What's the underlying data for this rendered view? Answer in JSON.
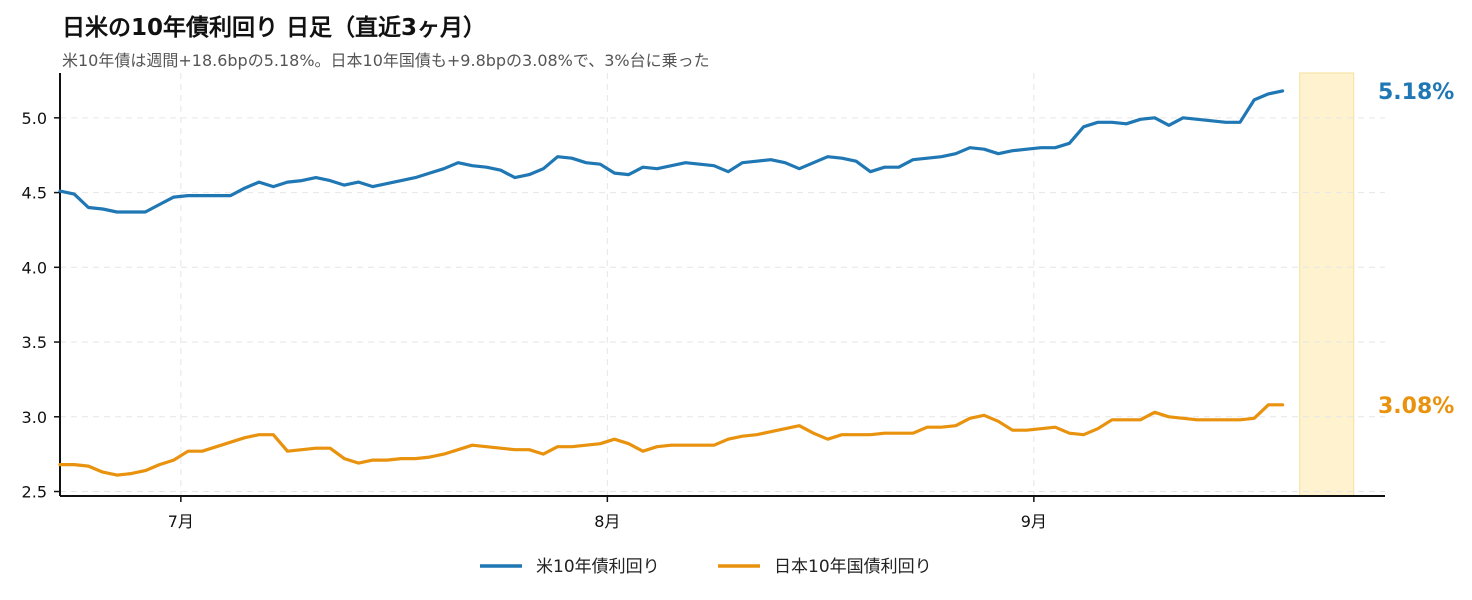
{
  "chart_data": {
    "type": "line",
    "title": "日米の10年債利回り 日足（直近3ヶ月）",
    "subtitle": "米10年債は週間+18.6bpの5.18%。日本10年国債も+9.8bpの3.08%で、3%台に乗った",
    "ylim": [
      2.47,
      5.3
    ],
    "yticks": [
      "2.5",
      "3.0",
      "3.5",
      "4.0",
      "4.5",
      "5.0"
    ],
    "xlim": [
      0,
      93.2
    ],
    "xticks": [
      {
        "x": 8.5,
        "label": "7月"
      },
      {
        "x": 38.5,
        "label": "8月"
      },
      {
        "x": 68.5,
        "label": "9月"
      }
    ],
    "highlight": [
      87.2,
      91
    ],
    "grid": true,
    "legend": "bottom-center",
    "series": [
      {
        "name": "米10年債利回り",
        "color": "#1f77b4",
        "end_label": "5.18%",
        "points": [
          [
            0,
            4.51
          ],
          [
            1,
            4.49
          ],
          [
            2,
            4.4
          ],
          [
            3,
            4.39
          ],
          [
            4,
            4.37
          ],
          [
            5,
            4.37
          ],
          [
            6,
            4.37
          ],
          [
            7,
            4.42
          ],
          [
            8,
            4.47
          ],
          [
            9,
            4.48
          ],
          [
            10,
            4.48
          ],
          [
            11,
            4.48
          ],
          [
            12,
            4.48
          ],
          [
            13,
            4.53
          ],
          [
            14,
            4.57
          ],
          [
            15,
            4.54
          ],
          [
            16,
            4.57
          ],
          [
            17,
            4.58
          ],
          [
            18,
            4.6
          ],
          [
            19,
            4.58
          ],
          [
            20,
            4.55
          ],
          [
            21,
            4.57
          ],
          [
            22,
            4.54
          ],
          [
            23,
            4.56
          ],
          [
            24,
            4.58
          ],
          [
            25,
            4.6
          ],
          [
            26,
            4.63
          ],
          [
            27,
            4.66
          ],
          [
            28,
            4.7
          ],
          [
            29,
            4.68
          ],
          [
            30,
            4.67
          ],
          [
            31,
            4.65
          ],
          [
            32,
            4.6
          ],
          [
            33,
            4.62
          ],
          [
            34,
            4.66
          ],
          [
            35,
            4.74
          ],
          [
            36,
            4.73
          ],
          [
            37,
            4.7
          ],
          [
            38,
            4.69
          ],
          [
            39,
            4.63
          ],
          [
            40,
            4.62
          ],
          [
            41,
            4.67
          ],
          [
            42,
            4.66
          ],
          [
            43,
            4.68
          ],
          [
            44,
            4.7
          ],
          [
            45,
            4.69
          ],
          [
            46,
            4.68
          ],
          [
            47,
            4.64
          ],
          [
            48,
            4.7
          ],
          [
            49,
            4.71
          ],
          [
            50,
            4.72
          ],
          [
            51,
            4.7
          ],
          [
            52,
            4.66
          ],
          [
            53,
            4.7
          ],
          [
            54,
            4.74
          ],
          [
            55,
            4.73
          ],
          [
            56,
            4.71
          ],
          [
            57,
            4.64
          ],
          [
            58,
            4.67
          ],
          [
            59,
            4.67
          ],
          [
            60,
            4.72
          ],
          [
            61,
            4.73
          ],
          [
            62,
            4.74
          ],
          [
            63,
            4.76
          ],
          [
            64,
            4.8
          ],
          [
            65,
            4.79
          ],
          [
            66,
            4.76
          ],
          [
            67,
            4.78
          ],
          [
            68,
            4.79
          ],
          [
            69,
            4.8
          ],
          [
            70,
            4.8
          ],
          [
            71,
            4.83
          ],
          [
            72,
            4.94
          ],
          [
            73,
            4.97
          ],
          [
            74,
            4.97
          ],
          [
            75,
            4.96
          ],
          [
            76,
            4.99
          ],
          [
            77,
            5.0
          ],
          [
            78,
            4.95
          ],
          [
            79,
            5.0
          ],
          [
            80,
            4.99
          ],
          [
            81,
            4.98
          ],
          [
            82,
            4.97
          ],
          [
            83,
            4.97
          ],
          [
            84,
            5.12
          ],
          [
            85,
            5.16
          ],
          [
            86,
            5.18
          ]
        ]
      },
      {
        "name": "日本10年国債利回り",
        "color": "#e8920e",
        "end_label": "3.08%",
        "points": [
          [
            0,
            2.68
          ],
          [
            1,
            2.68
          ],
          [
            2,
            2.67
          ],
          [
            3,
            2.63
          ],
          [
            4,
            2.61
          ],
          [
            5,
            2.62
          ],
          [
            6,
            2.64
          ],
          [
            7,
            2.68
          ],
          [
            8,
            2.71
          ],
          [
            9,
            2.77
          ],
          [
            10,
            2.77
          ],
          [
            11,
            2.8
          ],
          [
            12,
            2.83
          ],
          [
            13,
            2.86
          ],
          [
            14,
            2.88
          ],
          [
            15,
            2.88
          ],
          [
            16,
            2.77
          ],
          [
            17,
            2.78
          ],
          [
            18,
            2.79
          ],
          [
            19,
            2.79
          ],
          [
            20,
            2.72
          ],
          [
            21,
            2.69
          ],
          [
            22,
            2.71
          ],
          [
            23,
            2.71
          ],
          [
            24,
            2.72
          ],
          [
            25,
            2.72
          ],
          [
            26,
            2.73
          ],
          [
            27,
            2.75
          ],
          [
            28,
            2.78
          ],
          [
            29,
            2.81
          ],
          [
            30,
            2.8
          ],
          [
            31,
            2.79
          ],
          [
            32,
            2.78
          ],
          [
            33,
            2.78
          ],
          [
            34,
            2.75
          ],
          [
            35,
            2.8
          ],
          [
            36,
            2.8
          ],
          [
            37,
            2.81
          ],
          [
            38,
            2.82
          ],
          [
            39,
            2.85
          ],
          [
            40,
            2.82
          ],
          [
            41,
            2.77
          ],
          [
            42,
            2.8
          ],
          [
            43,
            2.81
          ],
          [
            44,
            2.81
          ],
          [
            45,
            2.81
          ],
          [
            46,
            2.81
          ],
          [
            47,
            2.85
          ],
          [
            48,
            2.87
          ],
          [
            49,
            2.88
          ],
          [
            50,
            2.9
          ],
          [
            51,
            2.92
          ],
          [
            52,
            2.94
          ],
          [
            53,
            2.89
          ],
          [
            54,
            2.85
          ],
          [
            55,
            2.88
          ],
          [
            56,
            2.88
          ],
          [
            57,
            2.88
          ],
          [
            58,
            2.89
          ],
          [
            59,
            2.89
          ],
          [
            60,
            2.89
          ],
          [
            61,
            2.93
          ],
          [
            62,
            2.93
          ],
          [
            63,
            2.94
          ],
          [
            64,
            2.99
          ],
          [
            65,
            3.01
          ],
          [
            66,
            2.97
          ],
          [
            67,
            2.91
          ],
          [
            68,
            2.91
          ],
          [
            69,
            2.92
          ],
          [
            70,
            2.93
          ],
          [
            71,
            2.89
          ],
          [
            72,
            2.88
          ],
          [
            73,
            2.92
          ],
          [
            74,
            2.98
          ],
          [
            75,
            2.98
          ],
          [
            76,
            2.98
          ],
          [
            77,
            3.03
          ],
          [
            78,
            3.0
          ],
          [
            79,
            2.99
          ],
          [
            80,
            2.98
          ],
          [
            81,
            2.98
          ],
          [
            82,
            2.98
          ],
          [
            83,
            2.98
          ],
          [
            84,
            2.99
          ],
          [
            85,
            3.08
          ],
          [
            86,
            3.08
          ]
        ]
      }
    ]
  }
}
